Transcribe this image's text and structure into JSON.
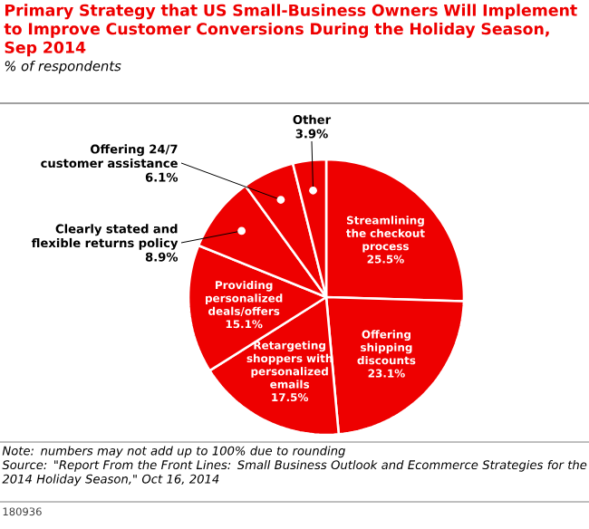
{
  "chart_data": {
    "type": "pie",
    "title": "Primary Strategy that US Small-Business Owners Will Implement to Improve Customer Conversions During the Holiday Season, Sep 2014",
    "subtitle": "% of respondents",
    "categories": [
      "Streamlining the checkout process",
      "Offering shipping discounts",
      "Retargeting shoppers with personalized emails",
      "Providing personalized deals/offers",
      "Clearly stated and flexible returns policy",
      "Offering 24/7 customer assistance",
      "Other"
    ],
    "values": [
      25.5,
      23.1,
      17.5,
      15.1,
      8.9,
      6.1,
      3.9
    ],
    "colors": [
      "#ee0000",
      "#ee0000",
      "#ee0000",
      "#ee0000",
      "#ee0000",
      "#ee0000",
      "#ee0000"
    ],
    "value_labels": [
      "25.5%",
      "23.1%",
      "17.5%",
      "15.1%",
      "8.9%",
      "6.1%",
      "3.9%"
    ],
    "annotations": [
      "Note: numbers may not add up to 100% due to rounding",
      "Source: \"Report From the Front Lines: Small Business Outlook and Ecommerce Strategies for the 2014 Holiday Season,\" Oct 16, 2014",
      "180936"
    ]
  }
}
